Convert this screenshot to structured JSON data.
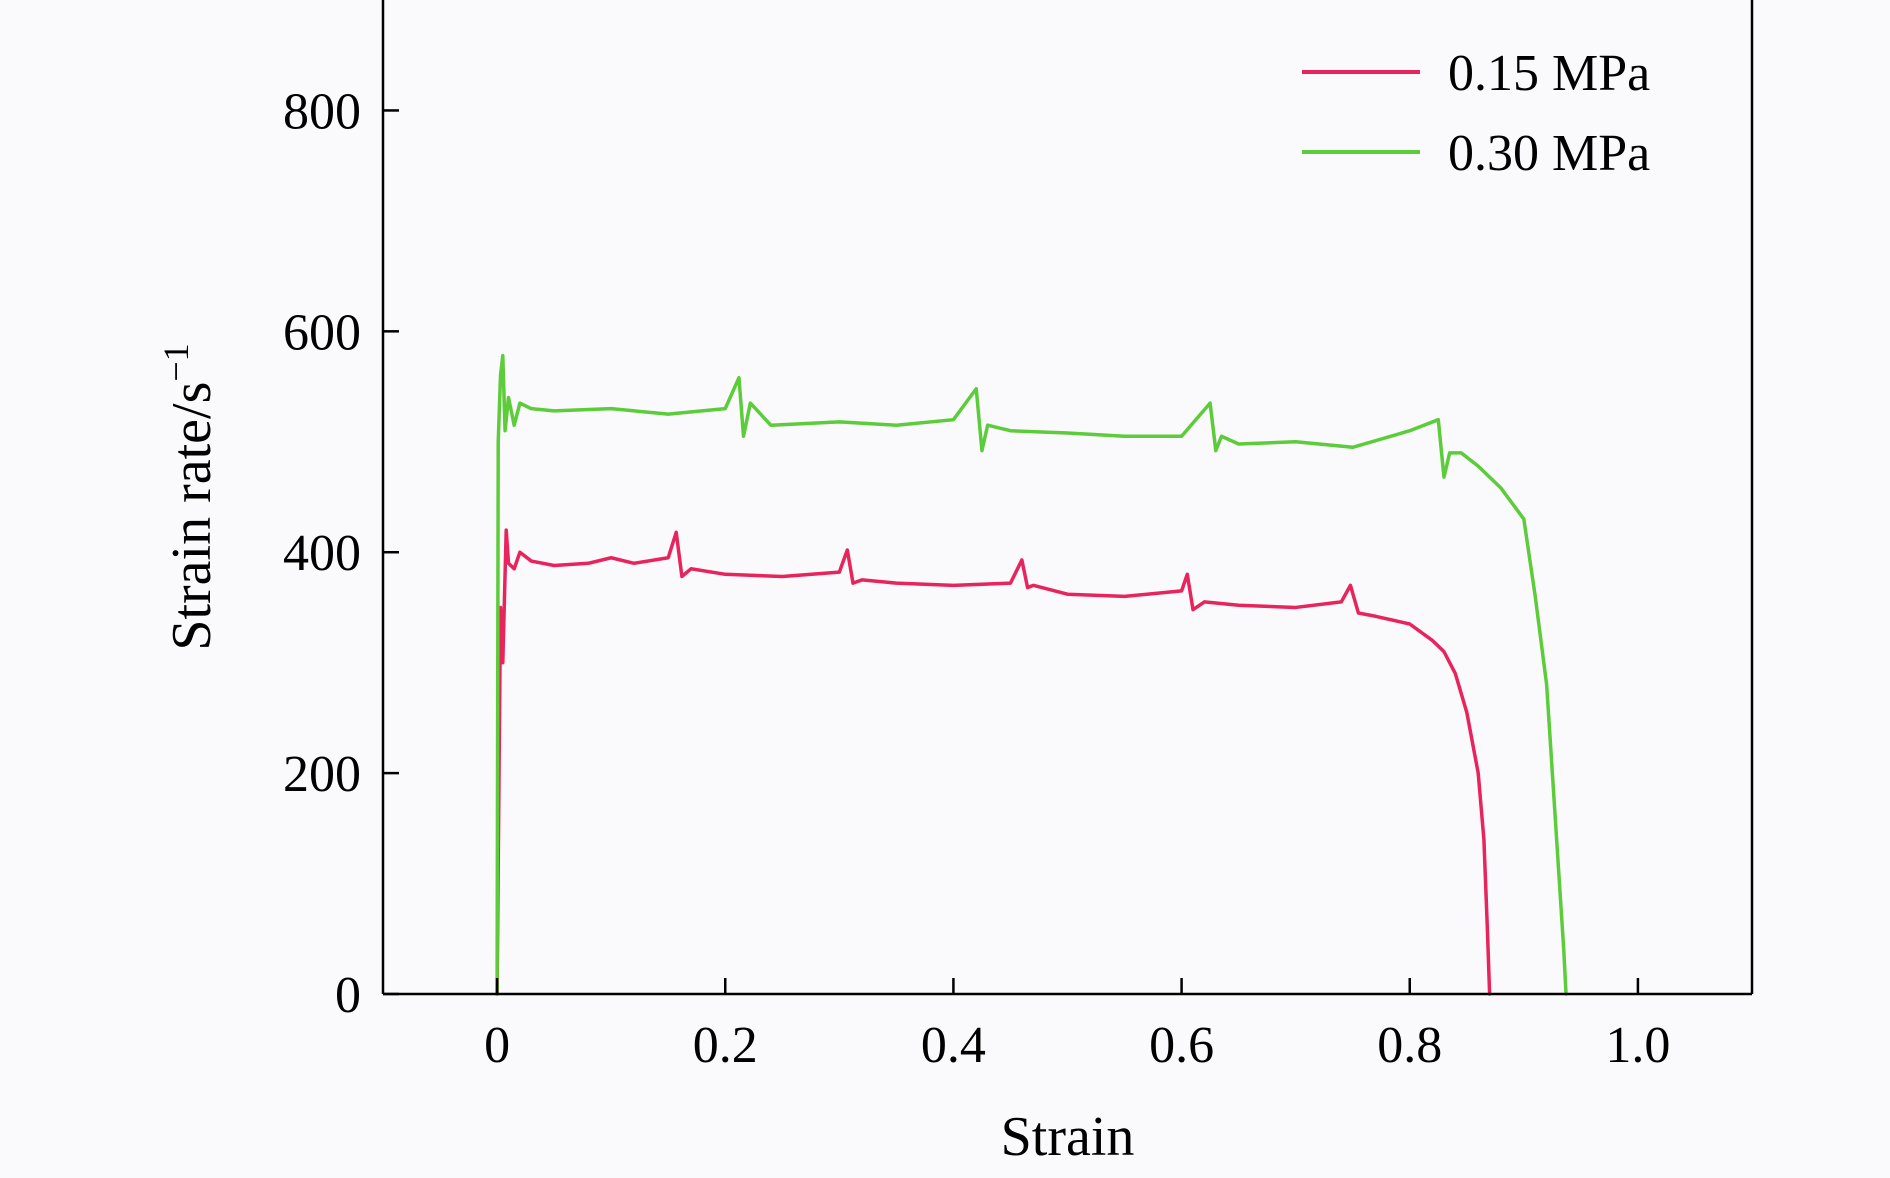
{
  "chart_data": {
    "type": "line",
    "title": "",
    "xlabel": "Strain",
    "ylabel": "Strain rate/s",
    "ylabel_superscript": "−1",
    "xlim": [
      -0.1,
      1.1
    ],
    "ylim": [
      0,
      900
    ],
    "x_ticks": [
      0,
      0.2,
      0.4,
      0.6,
      0.8,
      1.0
    ],
    "x_tick_labels": [
      "0",
      "0.2",
      "0.4",
      "0.6",
      "0.8",
      "1.0"
    ],
    "y_ticks": [
      0,
      200,
      400,
      600,
      800
    ],
    "y_tick_labels": [
      "0",
      "200",
      "400",
      "600",
      "800"
    ],
    "grid": false,
    "legend_position": "top-right",
    "series": [
      {
        "name": "0.15 MPa",
        "color": "#e8245c",
        "x": [
          0.0,
          0.003,
          0.005,
          0.008,
          0.01,
          0.015,
          0.02,
          0.03,
          0.05,
          0.08,
          0.1,
          0.12,
          0.15,
          0.157,
          0.162,
          0.17,
          0.2,
          0.25,
          0.3,
          0.307,
          0.312,
          0.32,
          0.35,
          0.4,
          0.45,
          0.46,
          0.465,
          0.47,
          0.5,
          0.55,
          0.6,
          0.605,
          0.61,
          0.62,
          0.65,
          0.7,
          0.74,
          0.748,
          0.755,
          0.77,
          0.8,
          0.82,
          0.83,
          0.84,
          0.85,
          0.86,
          0.865,
          0.868,
          0.87
        ],
        "y": [
          0,
          350,
          300,
          420,
          390,
          385,
          400,
          392,
          388,
          390,
          395,
          390,
          395,
          418,
          378,
          385,
          380,
          378,
          382,
          402,
          372,
          375,
          372,
          370,
          372,
          393,
          368,
          370,
          362,
          360,
          365,
          380,
          348,
          355,
          352,
          350,
          355,
          370,
          345,
          342,
          335,
          320,
          310,
          290,
          255,
          200,
          140,
          60,
          0
        ]
      },
      {
        "name": "0.30 MPa",
        "color": "#5ccc3a",
        "x": [
          0.0,
          0.001,
          0.003,
          0.005,
          0.007,
          0.01,
          0.015,
          0.02,
          0.03,
          0.05,
          0.1,
          0.15,
          0.2,
          0.212,
          0.216,
          0.222,
          0.24,
          0.3,
          0.35,
          0.4,
          0.42,
          0.425,
          0.43,
          0.45,
          0.5,
          0.55,
          0.6,
          0.625,
          0.63,
          0.635,
          0.65,
          0.7,
          0.75,
          0.8,
          0.825,
          0.83,
          0.835,
          0.845,
          0.86,
          0.88,
          0.9,
          0.91,
          0.92,
          0.925,
          0.93,
          0.935,
          0.937
        ],
        "y": [
          0,
          500,
          560,
          578,
          510,
          540,
          515,
          535,
          530,
          528,
          530,
          525,
          530,
          558,
          505,
          535,
          515,
          518,
          515,
          520,
          548,
          492,
          515,
          510,
          508,
          505,
          505,
          535,
          492,
          505,
          498,
          500,
          495,
          510,
          520,
          468,
          490,
          490,
          478,
          458,
          430,
          360,
          280,
          200,
          120,
          40,
          0
        ]
      }
    ]
  }
}
